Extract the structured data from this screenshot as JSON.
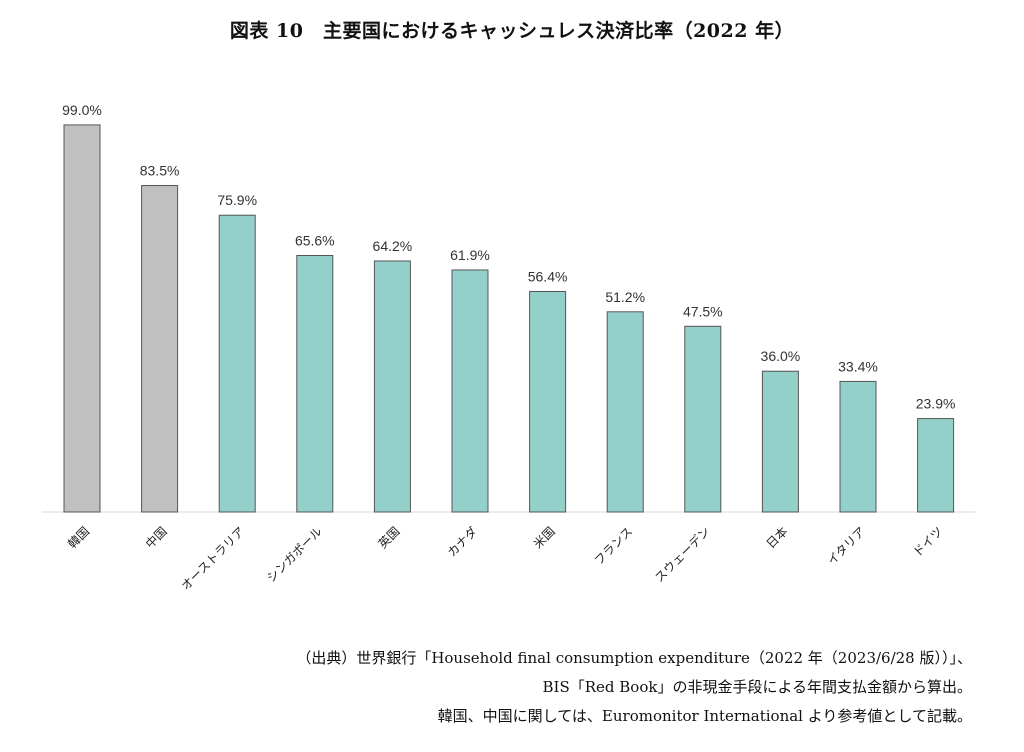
{
  "title": "図表 10　主要国におけるキャッシュレス決済比率（2022 年）",
  "chart_data": {
    "type": "bar",
    "categories": [
      "韓国",
      "中国",
      "オーストラリア",
      "シンガポール",
      "英国",
      "カナダ",
      "米国",
      "フランス",
      "スウェーデン",
      "日本",
      "イタリア",
      "ドイツ"
    ],
    "values": [
      99.0,
      83.5,
      75.9,
      65.6,
      64.2,
      61.9,
      56.4,
      51.2,
      47.5,
      36.0,
      33.4,
      23.9
    ],
    "value_labels": [
      "99.0%",
      "83.5%",
      "75.9%",
      "65.6%",
      "64.2%",
      "61.9%",
      "56.4%",
      "51.2%",
      "47.5%",
      "36.0%",
      "33.4%",
      "23.9%"
    ],
    "bar_colors": [
      "#c0c0c0",
      "#c0c0c0",
      "#92d0c9",
      "#92d0c9",
      "#92d0c9",
      "#92d0c9",
      "#92d0c9",
      "#92d0c9",
      "#92d0c9",
      "#92d0c9",
      "#92d0c9",
      "#92d0c9"
    ],
    "bar_edge_color": "#555555",
    "ylim": [
      0,
      100
    ],
    "grid": false,
    "xlabel": "",
    "ylabel": ""
  },
  "sources": [
    "（出典）世界銀行「Household final consumption expenditure（2022 年（2023/6/28 版））」、",
    "BIS「Red Book」の非現金手段による年間支払金額から算出。",
    "韓国、中国に関しては、Euromonitor International より参考値として記載。"
  ]
}
